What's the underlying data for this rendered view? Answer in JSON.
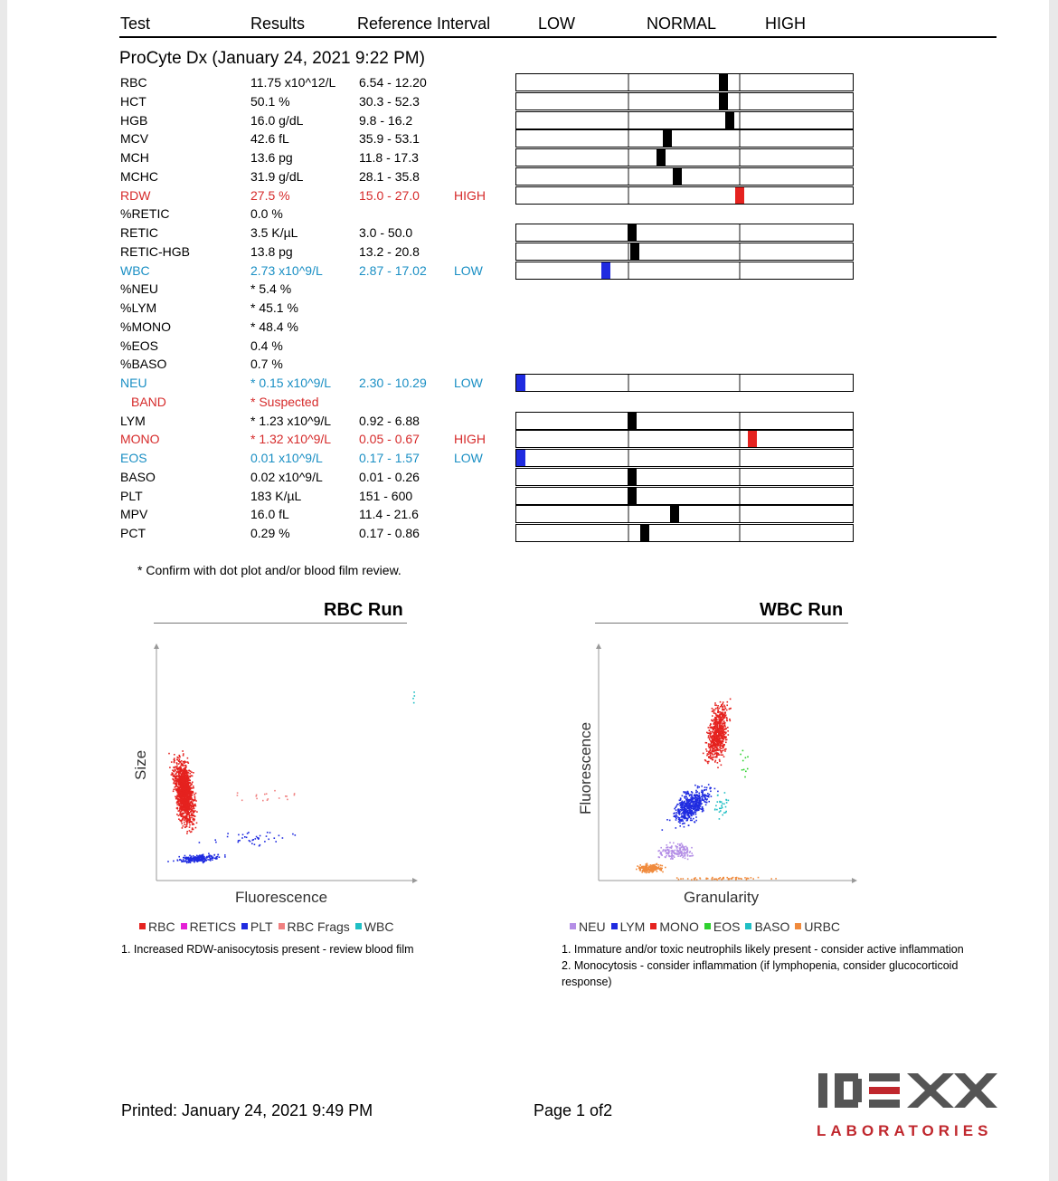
{
  "header": {
    "test": "Test",
    "results": "Results",
    "reference": "Reference Interval",
    "low": "LOW",
    "normal": "NORMAL",
    "high": "HIGH"
  },
  "instrument": "ProCyte Dx (January 24, 2021 9:22 PM)",
  "colors": {
    "high": "#d62b2b",
    "low": "#1a8fc4",
    "marker_normal": "#000000",
    "marker_high": "#e5221f",
    "marker_low": "#1f2be0",
    "idexx_red": "#c0272d"
  },
  "rows": [
    {
      "test": "RBC",
      "result": "11.75 x10^12/L",
      "ref": "6.54 - 12.20",
      "flag": "",
      "status": "normal",
      "marker": 0.62
    },
    {
      "test": "HCT",
      "result": "50.1 %",
      "ref": "30.3 - 52.3",
      "flag": "",
      "status": "normal",
      "marker": 0.62
    },
    {
      "test": "HGB",
      "result": "16.0 g/dL",
      "ref": "9.8 - 16.2",
      "flag": "",
      "status": "normal",
      "marker": 0.64
    },
    {
      "test": "MCV",
      "result": "42.6 fL",
      "ref": "35.9 - 53.1",
      "flag": "",
      "status": "normal",
      "marker": 0.45
    },
    {
      "test": "MCH",
      "result": "13.6 pg",
      "ref": "11.8 - 17.3",
      "flag": "",
      "status": "normal",
      "marker": 0.43
    },
    {
      "test": "MCHC",
      "result": "31.9 g/dL",
      "ref": "28.1 - 35.8",
      "flag": "",
      "status": "normal",
      "marker": 0.48
    },
    {
      "test": "RDW",
      "result": "27.5 %",
      "ref": "15.0 - 27.0",
      "flag": "HIGH",
      "status": "high",
      "marker": 0.67
    },
    {
      "test": "%RETIC",
      "result": "0.0 %",
      "ref": "",
      "flag": "",
      "status": "normal",
      "marker": null
    },
    {
      "test": "RETIC",
      "result": "3.5 K/µL",
      "ref": "3.0 - 50.0",
      "flag": "",
      "status": "normal",
      "marker": 0.34
    },
    {
      "test": "RETIC-HGB",
      "result": "13.8 pg",
      "ref": "13.2 - 20.8",
      "flag": "",
      "status": "normal",
      "marker": 0.35
    },
    {
      "test": "WBC",
      "result": "2.73 x10^9/L",
      "ref": "2.87 - 17.02",
      "flag": "LOW",
      "status": "low",
      "marker": 0.26
    },
    {
      "test": "%NEU",
      "result": "* 5.4 %",
      "ref": "",
      "flag": "",
      "status": "normal",
      "marker": null
    },
    {
      "test": "%LYM",
      "result": "* 45.1 %",
      "ref": "",
      "flag": "",
      "status": "normal",
      "marker": null
    },
    {
      "test": "%MONO",
      "result": "* 48.4 %",
      "ref": "",
      "flag": "",
      "status": "normal",
      "marker": null
    },
    {
      "test": "%EOS",
      "result": "0.4 %",
      "ref": "",
      "flag": "",
      "status": "normal",
      "marker": null
    },
    {
      "test": "%BASO",
      "result": "0.7 %",
      "ref": "",
      "flag": "",
      "status": "normal",
      "marker": null
    },
    {
      "test": "NEU",
      "result": "* 0.15 x10^9/L",
      "ref": "2.30 - 10.29",
      "flag": "LOW",
      "status": "low",
      "marker": 0.0
    },
    {
      "test": "BAND",
      "result": "* Suspected",
      "ref": "",
      "flag": "",
      "status": "high",
      "marker": null,
      "indent": true
    },
    {
      "test": "LYM",
      "result": "* 1.23 x10^9/L",
      "ref": "0.92 - 6.88",
      "flag": "",
      "status": "normal",
      "marker": 0.34
    },
    {
      "test": "MONO",
      "result": "* 1.32 x10^9/L",
      "ref": "0.05 - 0.67",
      "flag": "HIGH",
      "status": "high",
      "marker": 0.71
    },
    {
      "test": "EOS",
      "result": "0.01 x10^9/L",
      "ref": "0.17 - 1.57",
      "flag": "LOW",
      "status": "low",
      "marker": 0.0
    },
    {
      "test": "BASO",
      "result": "0.02 x10^9/L",
      "ref": "0.01 - 0.26",
      "flag": "",
      "status": "normal",
      "marker": 0.34
    },
    {
      "test": "PLT",
      "result": "183 K/µL",
      "ref": "151 - 600",
      "flag": "",
      "status": "normal",
      "marker": 0.34
    },
    {
      "test": "MPV",
      "result": "16.0 fL",
      "ref": "11.4 - 21.6",
      "flag": "",
      "status": "normal",
      "marker": 0.47
    },
    {
      "test": "PCT",
      "result": "0.29 %",
      "ref": "0.17 - 0.86",
      "flag": "",
      "status": "normal",
      "marker": 0.38
    }
  ],
  "footnote": "* Confirm with dot plot and/or blood film review.",
  "rbc_plot": {
    "title": "RBC Run",
    "xlabel": "Fluorescence",
    "ylabel": "Size",
    "legend": [
      {
        "label": "RBC",
        "color": "#e5221f"
      },
      {
        "label": "RETICS",
        "color": "#e51fd6"
      },
      {
        "label": "PLT",
        "color": "#1f2be0"
      },
      {
        "label": "RBC Frags",
        "color": "#f08080"
      },
      {
        "label": "WBC",
        "color": "#1fbfc4"
      }
    ],
    "notes": [
      "1. Increased RDW-anisocytosis present - review blood film"
    ]
  },
  "wbc_plot": {
    "title": "WBC Run",
    "xlabel": "Granularity",
    "ylabel": "Fluorescence",
    "legend": [
      {
        "label": "NEU",
        "color": "#b48ee6"
      },
      {
        "label": "LYM",
        "color": "#1f2be0"
      },
      {
        "label": "MONO",
        "color": "#e5221f"
      },
      {
        "label": "EOS",
        "color": "#2fd12f"
      },
      {
        "label": "BASO",
        "color": "#1fbfc4"
      },
      {
        "label": "URBC",
        "color": "#f08a3c"
      }
    ],
    "notes": [
      "1. Immature and/or toxic neutrophils likely present - consider active inflammation",
      "2. Monocytosis - consider inflammation (if lymphopenia, consider glucocorticoid",
      "response)"
    ]
  },
  "footer": {
    "printed": "Printed: January 24, 2021 9:49 PM",
    "page": "Page 1 of2",
    "logo": "IDEXX",
    "logo_sub": "LABORATORIES"
  }
}
